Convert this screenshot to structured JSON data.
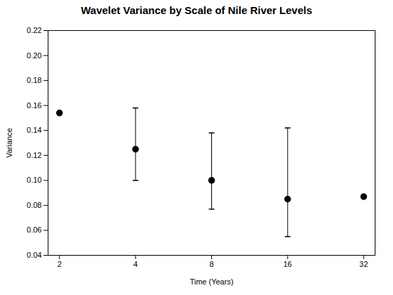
{
  "chart_data": {
    "type": "scatter",
    "title": "Wavelet Variance by Scale of Nile River Levels",
    "x_label": "Time (Years)",
    "y_label": "Variance",
    "x": [
      2,
      4,
      8,
      16,
      32
    ],
    "values": [
      0.154,
      0.125,
      0.1,
      0.085,
      0.087
    ],
    "yerr_upper": [
      0.0,
      0.033,
      0.038,
      0.057,
      0.0
    ],
    "yerr_lower": [
      0.0,
      0.025,
      0.023,
      0.03,
      0.0
    ],
    "color": "#000000",
    "marker": "o",
    "log": "x",
    "xlim": [
      1.8025,
      35.5062
    ],
    "xticks": [
      2,
      4,
      8,
      16,
      32
    ],
    "ylim": [
      0.04,
      0.22
    ],
    "yticks": [
      0.04,
      0.06,
      0.08,
      {
        "value": 0.1,
        "label": "0.10"
      },
      0.12,
      0.14,
      0.16,
      0.18,
      {
        "value": 0.2,
        "label": "0.20"
      },
      0.22
    ],
    "grid": false
  }
}
